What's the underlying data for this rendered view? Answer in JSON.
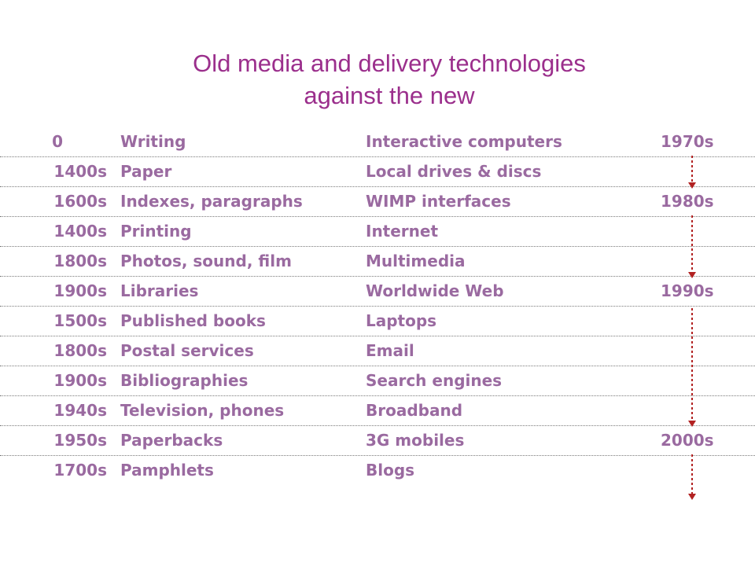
{
  "title_line1": "Old media and delivery technologies",
  "title_line2": "against the new",
  "colors": {
    "title": "#9b2f8c",
    "text": "#9a6aa0",
    "arrow": "#b22222",
    "rule": "#7a7a7a"
  },
  "rows": [
    {
      "old_year": "0",
      "old_tech": "Writing",
      "new_tech": "Interactive computers",
      "new_year": "1970s"
    },
    {
      "old_year": "1400s",
      "old_tech": "Paper",
      "new_tech": "Local drives & discs",
      "new_year": ""
    },
    {
      "old_year": "1600s",
      "old_tech": "Indexes, paragraphs",
      "new_tech": "WIMP interfaces",
      "new_year": "1980s"
    },
    {
      "old_year": "1400s",
      "old_tech": "Printing",
      "new_tech": "Internet",
      "new_year": ""
    },
    {
      "old_year": "1800s",
      "old_tech": "Photos, sound, film",
      "new_tech": "Multimedia",
      "new_year": ""
    },
    {
      "old_year": "1900s",
      "old_tech": "Libraries",
      "new_tech": "Worldwide Web",
      "new_year": "1990s"
    },
    {
      "old_year": "1500s",
      "old_tech": "Published books",
      "new_tech": "Laptops",
      "new_year": ""
    },
    {
      "old_year": "1800s",
      "old_tech": "Postal services",
      "new_tech": "Email",
      "new_year": ""
    },
    {
      "old_year": "1900s",
      "old_tech": "Bibliographies",
      "new_tech": "Search engines",
      "new_year": ""
    },
    {
      "old_year": "1940s",
      "old_tech": "Television, phones",
      "new_tech": "Broadband",
      "new_year": ""
    },
    {
      "old_year": "1950s",
      "old_tech": "Paperbacks",
      "new_tech": "3G mobiles",
      "new_year": "2000s"
    },
    {
      "old_year": "1700s",
      "old_tech": "Pamphlets",
      "new_tech": "Blogs",
      "new_year": ""
    }
  ]
}
